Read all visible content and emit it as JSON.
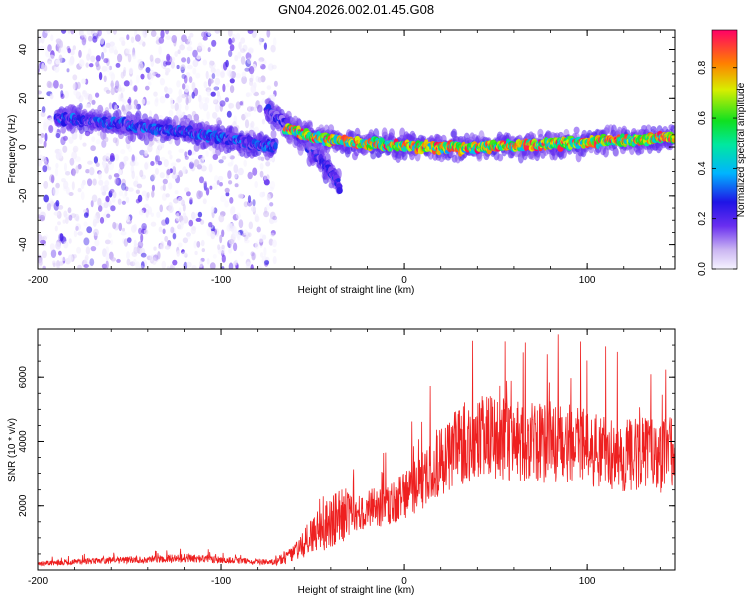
{
  "title": "GN04.2026.002.01.45.G08",
  "colors": {
    "snr_line": "#ee2020",
    "colormap": [
      "#f0f0ff",
      "#cbb6f2",
      "#8a5df0",
      "#3c10e8",
      "#1830f0",
      "#00c8ff",
      "#00ee40",
      "#e8ee00",
      "#ff7700",
      "#ff0066"
    ]
  },
  "chart_data": [
    {
      "type": "heatmap",
      "title": "GN04.2026.002.01.45.G08",
      "xlabel": "Height of straight line (km)",
      "ylabel": "Frequency (Hz)",
      "xlim": [
        -200,
        148
      ],
      "ylim": [
        -50,
        48
      ],
      "xticks": [
        -200,
        -100,
        0,
        100
      ],
      "yticks": [
        -40,
        -20,
        0,
        20,
        40
      ],
      "colorbar": {
        "label": "Normalized spectral amplitude",
        "range": [
          0,
          0.95
        ],
        "ticks": [
          0.0,
          0.2,
          0.4,
          0.6,
          0.8
        ]
      },
      "ridges": [
        {
          "x": [
            -190,
            -160,
            -130,
            -100,
            -80,
            -70
          ],
          "freq": [
            12,
            10,
            7,
            4,
            1,
            0
          ],
          "amplitude": 0.3
        },
        {
          "x": [
            -75,
            -65,
            -55,
            -45,
            -38,
            -35
          ],
          "freq": [
            15,
            10,
            3,
            -6,
            -12,
            -16
          ],
          "amplitude": 0.25
        },
        {
          "x": [
            -65,
            -50,
            -30,
            -10,
            10,
            40,
            70,
            100,
            130,
            148
          ],
          "freq": [
            8,
            4,
            2,
            1,
            0,
            0,
            1,
            2,
            3,
            4
          ],
          "amplitude": 0.8
        }
      ],
      "noise_region_x": [
        -200,
        -70
      ]
    },
    {
      "type": "line",
      "xlabel": "Height of straight line (km)",
      "ylabel": "SNR (10 * v/v)",
      "xlim": [
        -200,
        148
      ],
      "ylim": [
        0,
        7500
      ],
      "xticks": [
        -200,
        -100,
        0,
        100
      ],
      "yticks": [
        2000,
        4000,
        6000
      ],
      "series": [
        {
          "x": [
            -200,
            -180,
            -160,
            -140,
            -120,
            -100,
            -80,
            -70,
            -60,
            -50,
            -40,
            -30,
            -20,
            -10,
            0,
            10,
            20,
            30,
            40,
            50,
            60,
            70,
            80,
            90,
            100,
            110,
            120,
            130,
            140,
            148
          ],
          "values": [
            200,
            260,
            300,
            330,
            380,
            320,
            260,
            250,
            500,
            1100,
            1500,
            1750,
            1900,
            2000,
            2300,
            2800,
            3400,
            3900,
            4100,
            4100,
            4000,
            4000,
            4000,
            3900,
            3900,
            3700,
            3600,
            3700,
            3500,
            3700
          ]
        }
      ]
    }
  ]
}
